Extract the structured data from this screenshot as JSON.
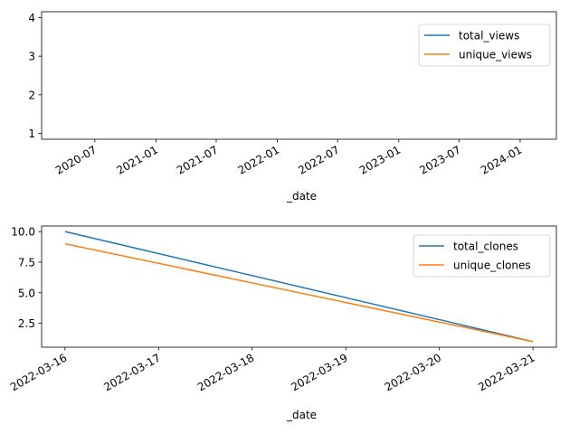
{
  "chart_data": [
    {
      "type": "line",
      "xlabel": "_date",
      "x_type": "date",
      "xlim": [
        "2020-01-23",
        "2024-04-19"
      ],
      "ylim": [
        0.85,
        4.15
      ],
      "x_ticks": [
        {
          "date": "2020-07-01",
          "label": "2020-07"
        },
        {
          "date": "2021-01-01",
          "label": "2021-01"
        },
        {
          "date": "2021-07-01",
          "label": "2021-07"
        },
        {
          "date": "2022-01-01",
          "label": "2022-01"
        },
        {
          "date": "2022-07-01",
          "label": "2022-07"
        },
        {
          "date": "2023-01-01",
          "label": "2023-01"
        },
        {
          "date": "2023-07-01",
          "label": "2023-07"
        },
        {
          "date": "2024-01-01",
          "label": "2024-01"
        }
      ],
      "y_ticks": [
        {
          "value": 1,
          "label": "1"
        },
        {
          "value": 2,
          "label": "2"
        },
        {
          "value": 3,
          "label": "3"
        },
        {
          "value": 4,
          "label": "4"
        }
      ],
      "grid": false,
      "legend": "upper-right",
      "series": [
        {
          "name": "total_views",
          "color": "#1f77b4",
          "x": [],
          "y": []
        },
        {
          "name": "unique_views",
          "color": "#ff7f0e",
          "x": [],
          "y": []
        }
      ]
    },
    {
      "type": "line",
      "xlabel": "_date",
      "x_type": "date",
      "xlim": [
        "2022-03-15T18:00",
        "2022-03-21T06:00"
      ],
      "ylim": [
        0.55,
        10.45
      ],
      "x_ticks": [
        {
          "date": "2022-03-16",
          "label": "2022-03-16"
        },
        {
          "date": "2022-03-17",
          "label": "2022-03-17"
        },
        {
          "date": "2022-03-18",
          "label": "2022-03-18"
        },
        {
          "date": "2022-03-19",
          "label": "2022-03-19"
        },
        {
          "date": "2022-03-20",
          "label": "2022-03-20"
        },
        {
          "date": "2022-03-21",
          "label": "2022-03-21"
        }
      ],
      "y_ticks": [
        {
          "value": 2.5,
          "label": "2.5"
        },
        {
          "value": 5.0,
          "label": "5.0"
        },
        {
          "value": 7.5,
          "label": "7.5"
        },
        {
          "value": 10.0,
          "label": "10.0"
        }
      ],
      "grid": false,
      "legend": "upper-right",
      "series": [
        {
          "name": "total_clones",
          "color": "#1f77b4",
          "x": [
            "2022-03-16",
            "2022-03-21"
          ],
          "y": [
            10,
            1
          ]
        },
        {
          "name": "unique_clones",
          "color": "#ff7f0e",
          "x": [
            "2022-03-16",
            "2022-03-21"
          ],
          "y": [
            9,
            1
          ]
        }
      ]
    }
  ]
}
